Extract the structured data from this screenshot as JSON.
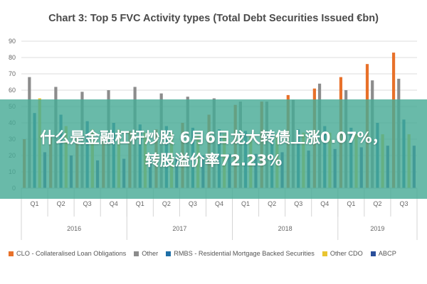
{
  "banner": {
    "line1": "什么是金融杠杆炒股 6月6日龙大转债上涨0.07%，",
    "line2": "转股溢价率72.23%"
  },
  "chart_data": {
    "type": "bar",
    "title": "Chart 3: Top 5 FVC Activity types (Total Debt Securities Issued €bn)",
    "xlabel": "",
    "ylabel": "",
    "ylim": [
      0,
      90
    ],
    "yticks": [
      0,
      10,
      20,
      30,
      40,
      50,
      60,
      70,
      80,
      90
    ],
    "grid": true,
    "legend_position": "bottom",
    "categories": [
      "Q1",
      "Q2",
      "Q3",
      "Q4",
      "Q1",
      "Q2",
      "Q3",
      "Q4",
      "Q1",
      "Q2",
      "Q3",
      "Q4",
      "Q1",
      "Q2",
      "Q3"
    ],
    "years": [
      {
        "label": "2016",
        "quarters": 4
      },
      {
        "label": "2017",
        "quarters": 4
      },
      {
        "label": "2018",
        "quarters": 4
      },
      {
        "label": "2019",
        "quarters": 3
      }
    ],
    "series": [
      {
        "name": "CLO - Collateralised Loan Obligations",
        "color": "#e8712a",
        "values": [
          30,
          31,
          32,
          33,
          35,
          36,
          40,
          45,
          51,
          53,
          57,
          61,
          68,
          76,
          83
        ]
      },
      {
        "name": "Other",
        "color": "#8c8c8c",
        "values": [
          68,
          62,
          59,
          60,
          62,
          58,
          56,
          55,
          53,
          53,
          54,
          64,
          60,
          66,
          67
        ]
      },
      {
        "name": "RMBS - Residential Mortgage Backed Securities",
        "color": "#1e6fa7",
        "values": [
          46,
          45,
          41,
          40,
          39,
          38,
          37,
          36,
          35,
          35,
          36,
          38,
          37,
          40,
          42
        ]
      },
      {
        "name": "Other CDO",
        "color": "#e9c531",
        "values": [
          55,
          38,
          36,
          36,
          34,
          34,
          33,
          33,
          32,
          33,
          34,
          34,
          33,
          33,
          33
        ]
      },
      {
        "name": "ABCP",
        "color": "#2a4f9a",
        "values": [
          22,
          20,
          17,
          18,
          19,
          19,
          20,
          21,
          21,
          22,
          23,
          24,
          25,
          26,
          26
        ]
      }
    ]
  }
}
